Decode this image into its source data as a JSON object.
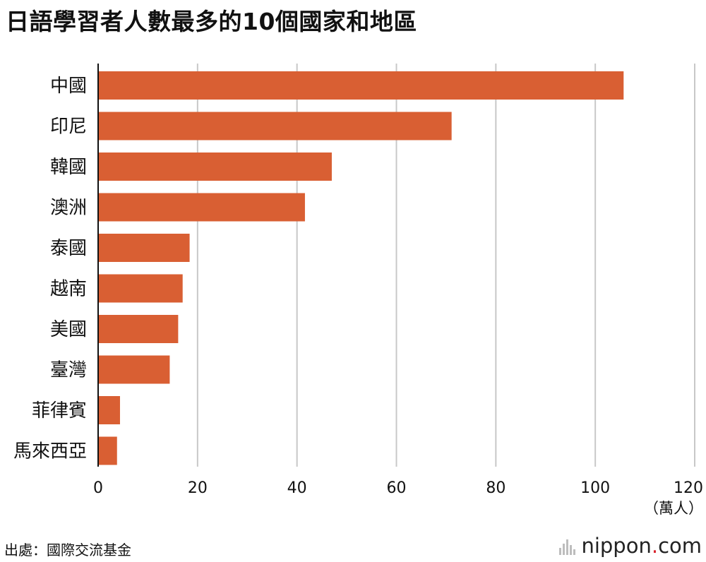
{
  "chart_data": {
    "type": "bar",
    "orientation": "horizontal",
    "title": "日語學習者人數最多的10個國家和地區",
    "categories": [
      "中國",
      "印尼",
      "韓國",
      "澳洲",
      "泰國",
      "越南",
      "美國",
      "臺灣",
      "菲律賓",
      "馬來西亞"
    ],
    "values": [
      105.7,
      71.1,
      47.0,
      41.6,
      18.4,
      17.0,
      16.1,
      14.4,
      4.4,
      3.8
    ],
    "unit_label": "（萬人）",
    "xlim": [
      0,
      120
    ],
    "x_ticks": [
      0,
      20,
      40,
      60,
      80,
      100,
      120
    ],
    "grid": true,
    "bar_color": "#d95f33",
    "grid_color": "#c8c8c8",
    "axis_color": "#111111"
  },
  "source": "出處：國際交流基金",
  "brand": {
    "name": "nippon",
    "dot": ".",
    "tld": "com",
    "dot_color": "#d9232d"
  }
}
